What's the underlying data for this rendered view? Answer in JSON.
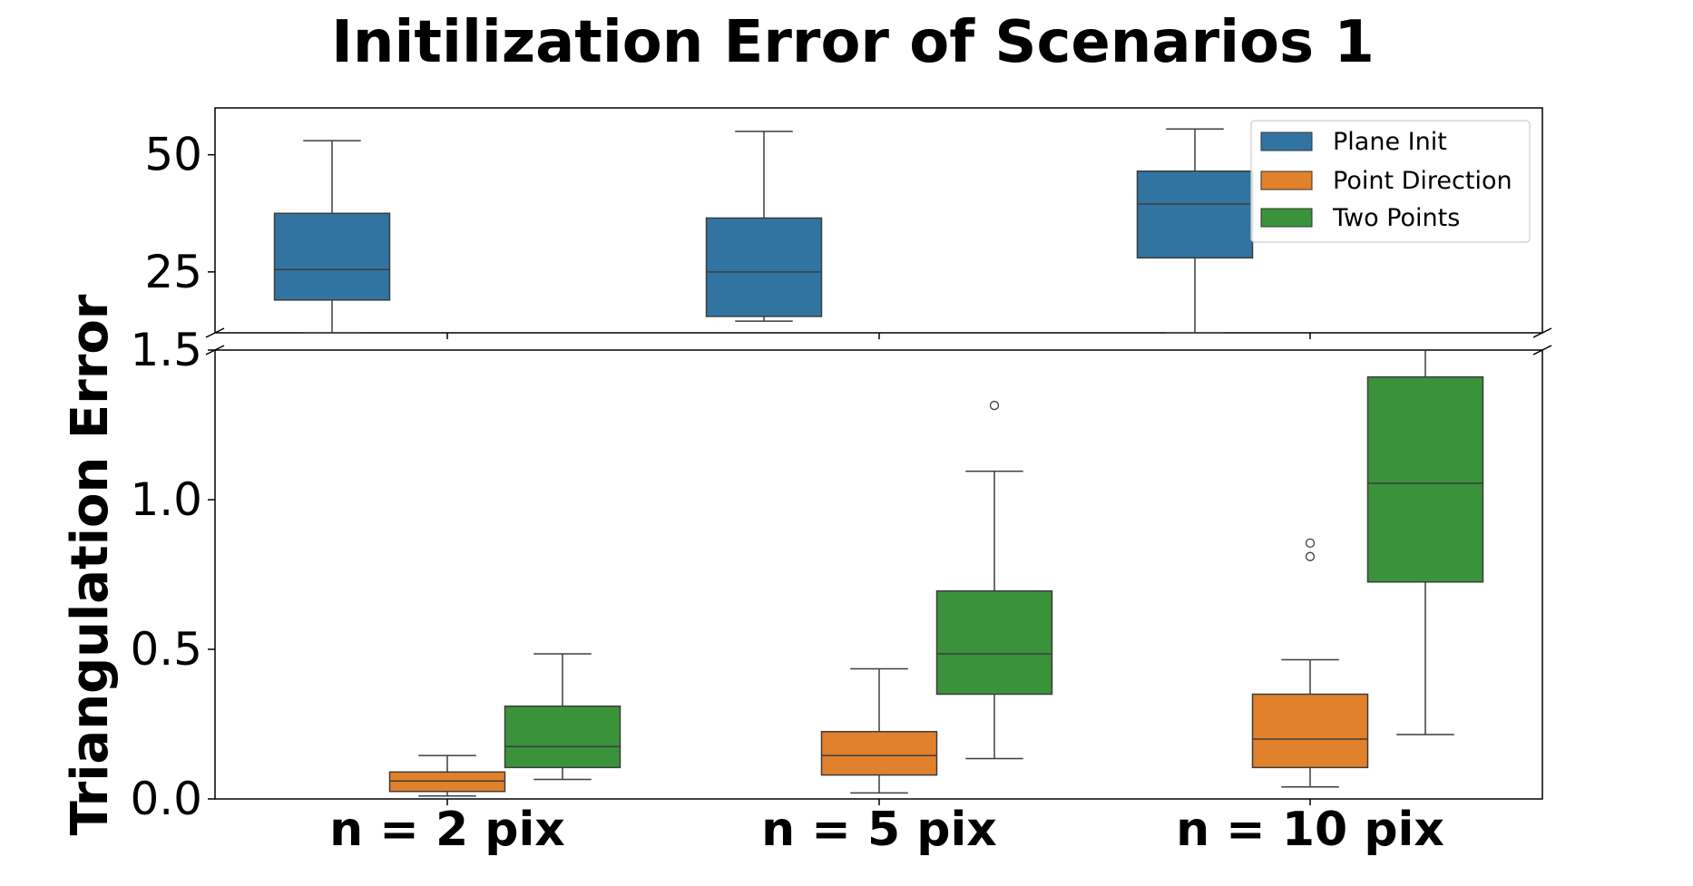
{
  "chart_data": {
    "type": "boxplot",
    "title": "Initilization Error of Scenarios 1",
    "ylabel": "Triangulation Error",
    "xlabel": "",
    "categories": [
      "n = 2 pix",
      "n = 5 pix",
      "n = 10 pix"
    ],
    "broken_axis": {
      "top_ylim": [
        12,
        60
      ],
      "bottom_ylim": [
        0,
        1.5
      ],
      "top_yticks": [
        25,
        50
      ],
      "top_ytick_labels": [
        "25",
        "50"
      ],
      "bottom_yticks": [
        0.0,
        0.5,
        1.0,
        1.5
      ],
      "bottom_ytick_labels": [
        "0.0",
        "0.5",
        "1.0",
        "1.5"
      ]
    },
    "legend": {
      "placement": "top-right",
      "entries": [
        "Plane Init",
        "Point Direction",
        "Two Points"
      ]
    },
    "series": [
      {
        "name": "Plane Init",
        "color": "#3274a1",
        "axis": "top",
        "boxes": [
          {
            "category": "n = 2 pix",
            "whislo": 12,
            "q1": 19,
            "median": 25.5,
            "q3": 37.5,
            "whishi": 53,
            "fliers": []
          },
          {
            "category": "n = 5 pix",
            "whislo": 14.5,
            "q1": 15.5,
            "median": 25,
            "q3": 36.5,
            "whishi": 55,
            "fliers": []
          },
          {
            "category": "n = 10 pix",
            "whislo": 12,
            "q1": 28,
            "median": 39.5,
            "q3": 46.5,
            "whishi": 55.5,
            "fliers": []
          }
        ]
      },
      {
        "name": "Point Direction",
        "color": "#e1812c",
        "axis": "bottom",
        "boxes": [
          {
            "category": "n = 2 pix",
            "whislo": 0.01,
            "q1": 0.025,
            "median": 0.06,
            "q3": 0.09,
            "whishi": 0.145,
            "fliers": []
          },
          {
            "category": "n = 5 pix",
            "whislo": 0.02,
            "q1": 0.08,
            "median": 0.145,
            "q3": 0.225,
            "whishi": 0.435,
            "fliers": []
          },
          {
            "category": "n = 10 pix",
            "whislo": 0.04,
            "q1": 0.105,
            "median": 0.2,
            "q3": 0.35,
            "whishi": 0.465,
            "fliers": [
              0.81,
              0.855
            ]
          }
        ]
      },
      {
        "name": "Two Points",
        "color": "#3a923a",
        "axis": "bottom",
        "boxes": [
          {
            "category": "n = 2 pix",
            "whislo": 0.065,
            "q1": 0.105,
            "median": 0.175,
            "q3": 0.31,
            "whishi": 0.485,
            "fliers": []
          },
          {
            "category": "n = 5 pix",
            "whislo": 0.135,
            "q1": 0.35,
            "median": 0.485,
            "q3": 0.695,
            "whishi": 1.095,
            "fliers": [
              1.315
            ]
          },
          {
            "category": "n = 10 pix",
            "whislo": 0.215,
            "q1": 0.725,
            "median": 1.055,
            "q3": 1.41,
            "whishi": 1.55,
            "fliers": []
          }
        ]
      }
    ]
  }
}
